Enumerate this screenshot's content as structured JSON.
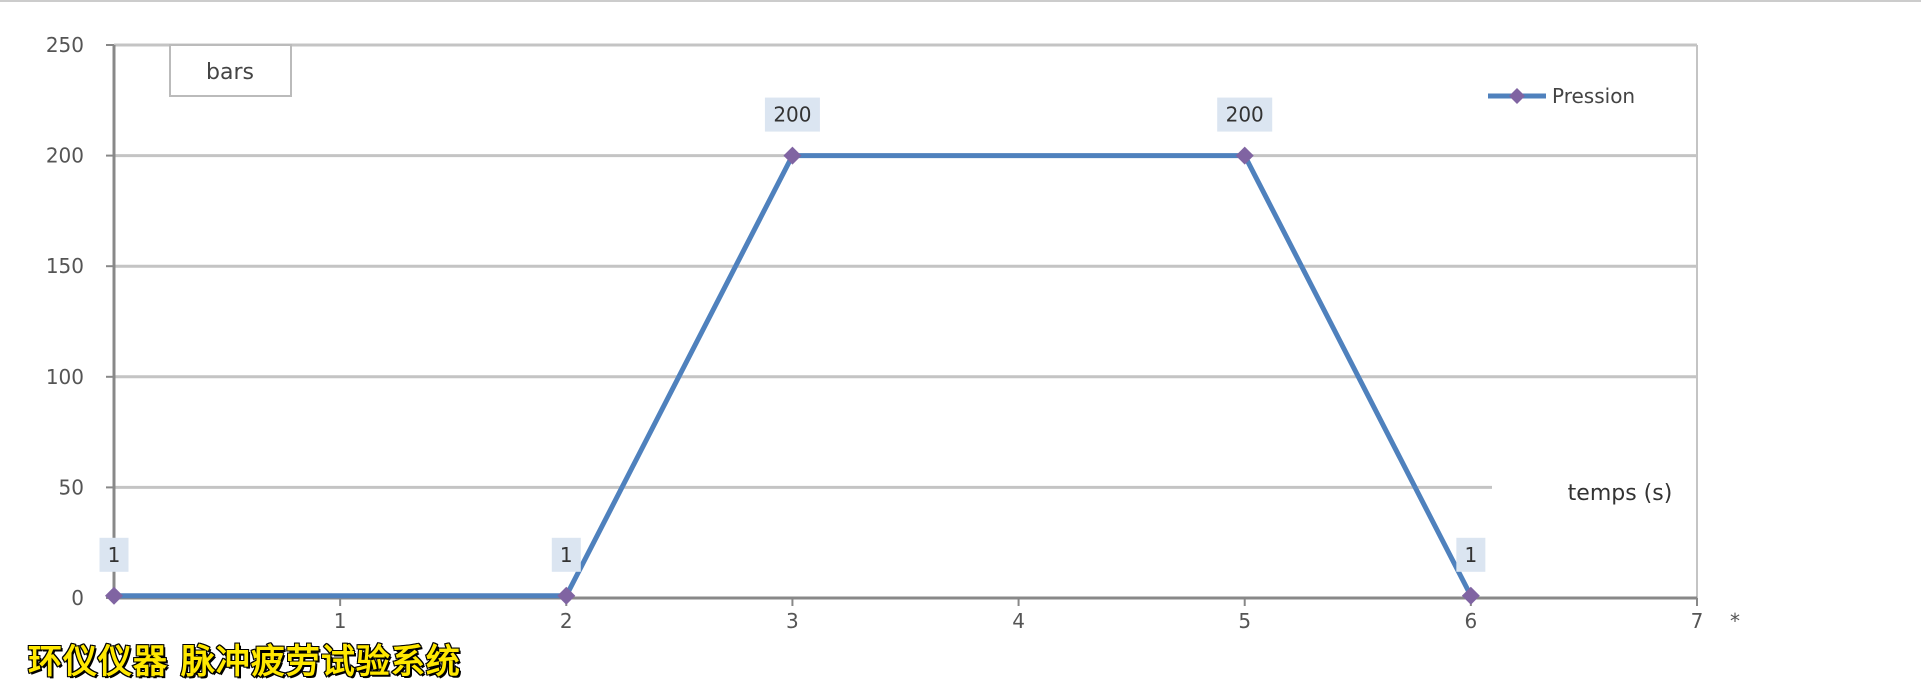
{
  "chart_data": {
    "type": "line",
    "title": "",
    "ylabel": "bars",
    "xlabel": "temps (s)",
    "xlim": [
      0,
      7
    ],
    "ylim": [
      0,
      250
    ],
    "yticks": [
      0,
      50,
      100,
      150,
      200,
      250
    ],
    "xticks": [
      1,
      2,
      3,
      4,
      5,
      6,
      7
    ],
    "grid": true,
    "legend": "top-right",
    "series": [
      {
        "name": "Pression",
        "color": "#4f81bd",
        "marker_color": "#8064a2",
        "x": [
          0,
          2,
          3,
          5,
          6
        ],
        "y": [
          1,
          1,
          200,
          200,
          1
        ],
        "data_labels": [
          "1",
          "1",
          "200",
          "200",
          "1"
        ]
      }
    ],
    "annotation": "*"
  },
  "watermark": "环仪仪器 脉冲疲劳试验系统"
}
